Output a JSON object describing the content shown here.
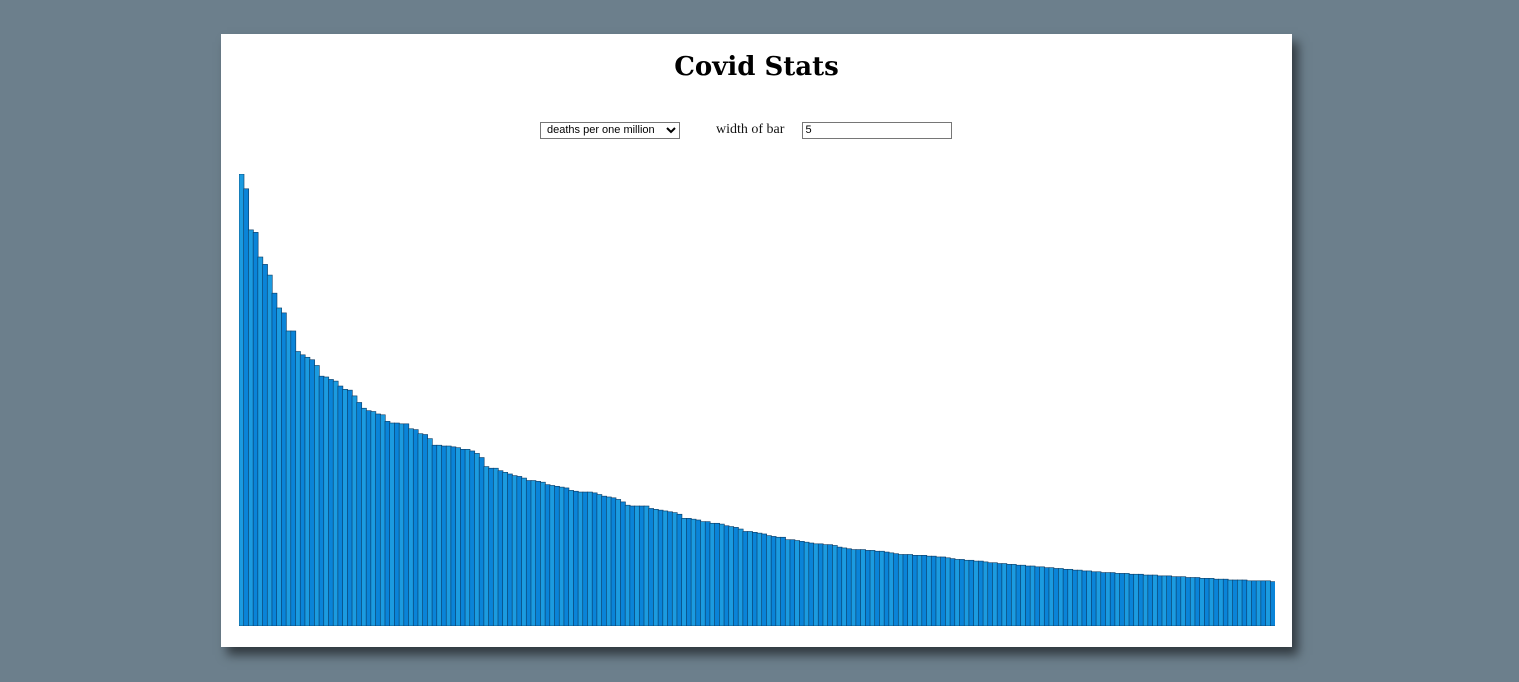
{
  "page": {
    "title": "Covid Stats"
  },
  "controls": {
    "metric_options": [
      "deaths per one million"
    ],
    "metric_selected": "deaths per one million",
    "bar_width_label": "width of bar",
    "bar_width_value": "5"
  },
  "colors": {
    "page_background": "#6c7f8c",
    "bar_primary": "#0a84d8",
    "bar_alternate": "#1b9be0",
    "bar_outline": "#0b3a63"
  },
  "chart_data": {
    "type": "bar",
    "title": "",
    "xlabel": "",
    "ylabel": "",
    "ylim": [
      0,
      5500
    ],
    "series": [
      {
        "values": [
          5500,
          5320,
          4820,
          4790,
          4490,
          4400,
          4270,
          4050,
          3870,
          3810,
          3590,
          3590,
          3340,
          3300,
          3270,
          3240,
          3170,
          3040,
          3030,
          3000,
          2980,
          2920,
          2880,
          2870,
          2800,
          2720,
          2650,
          2620,
          2610,
          2580,
          2570,
          2490,
          2470,
          2470,
          2460,
          2460,
          2400,
          2390,
          2340,
          2330,
          2280,
          2200,
          2200,
          2190,
          2190,
          2180,
          2170,
          2150,
          2150,
          2130,
          2100,
          2050,
          1940,
          1920,
          1920,
          1890,
          1870,
          1850,
          1830,
          1820,
          1800,
          1770,
          1770,
          1760,
          1750,
          1720,
          1710,
          1700,
          1690,
          1680,
          1650,
          1640,
          1630,
          1630,
          1630,
          1620,
          1600,
          1580,
          1570,
          1560,
          1540,
          1510,
          1470,
          1460,
          1460,
          1460,
          1460,
          1430,
          1420,
          1410,
          1400,
          1390,
          1380,
          1360,
          1310,
          1310,
          1300,
          1290,
          1270,
          1270,
          1250,
          1250,
          1240,
          1220,
          1210,
          1200,
          1180,
          1150,
          1150,
          1140,
          1130,
          1120,
          1100,
          1090,
          1080,
          1080,
          1050,
          1050,
          1040,
          1030,
          1020,
          1010,
          1000,
          1000,
          990,
          990,
          980,
          960,
          950,
          940,
          930,
          930,
          930,
          920,
          920,
          910,
          910,
          900,
          890,
          880,
          870,
          870,
          870,
          860,
          860,
          860,
          850,
          850,
          840,
          840,
          830,
          820,
          810,
          810,
          800,
          800,
          790,
          790,
          780,
          770,
          770,
          760,
          760,
          750,
          750,
          740,
          740,
          730,
          730,
          720,
          720,
          710,
          710,
          700,
          700,
          690,
          690,
          680,
          680,
          670,
          670,
          660,
          660,
          650,
          650,
          650,
          640,
          640,
          640,
          630,
          630,
          630,
          620,
          620,
          620,
          610,
          610,
          610,
          600,
          600,
          600,
          590,
          590,
          590,
          580,
          580,
          580,
          570,
          570,
          570,
          560,
          560,
          560,
          560,
          550,
          550,
          550,
          550,
          550,
          540
        ]
      }
    ]
  }
}
